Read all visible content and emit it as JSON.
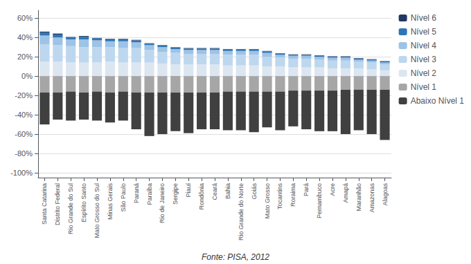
{
  "chart_data": {
    "type": "bar",
    "stacked": true,
    "categories": [
      "Santa Catarina",
      "Distrito Federal",
      "Rio Grande do Sul",
      "Espírito Santo",
      "Mato Grosso do Sul",
      "Minas Gerais",
      "São Paulo",
      "Paraná",
      "Paraíba",
      "Rio de Janeiro",
      "Sergipe",
      "Piauí",
      "Rondônia",
      "Ceará",
      "Bahia",
      "Rio Grande do Norte",
      "Goiás",
      "Mato Grosso",
      "Tocantins",
      "Roraima",
      "Pará",
      "Pernambuco",
      "Acre",
      "Amapá",
      "Maranhão",
      "Amazonas",
      "Alagoas"
    ],
    "series": [
      {
        "name": "Nível 2",
        "color": "#dce6f1",
        "values": [
          15,
          15,
          14,
          14,
          14,
          15,
          14,
          14,
          14,
          13,
          12,
          12,
          12,
          12,
          11,
          11,
          11,
          10,
          10,
          9,
          9,
          9,
          8,
          8,
          8,
          7,
          6
        ]
      },
      {
        "name": "Nível 3",
        "color": "#bdd7ee",
        "values": [
          18,
          17,
          17,
          16,
          16,
          15,
          15,
          15,
          13,
          12,
          12,
          11,
          11,
          11,
          11,
          11,
          11,
          10,
          9,
          9,
          9,
          8,
          8,
          8,
          7,
          7,
          6
        ]
      },
      {
        "name": "Nível 4",
        "color": "#9dc3e6",
        "values": [
          9,
          8,
          7,
          8,
          7,
          6,
          7,
          6,
          5,
          5,
          4,
          4,
          4,
          4,
          4,
          4,
          4,
          4,
          3,
          3,
          3,
          3,
          3,
          3,
          2,
          2,
          2
        ]
      },
      {
        "name": "Nível 5",
        "color": "#2e75b6",
        "values": [
          3,
          3,
          2,
          2.5,
          2,
          2,
          2,
          2,
          1.5,
          1.5,
          1.5,
          1.5,
          1.5,
          1.5,
          1.5,
          1.5,
          1.5,
          1.5,
          1,
          1,
          1,
          1,
          1,
          1,
          1,
          1,
          1
        ]
      },
      {
        "name": "Nível 6",
        "color": "#1f3864",
        "values": [
          1,
          1,
          0.5,
          1,
          0.5,
          0.5,
          0.5,
          0.5,
          0.5,
          0.5,
          0.5,
          0.5,
          0.5,
          0.5,
          0.5,
          0.5,
          0.5,
          0.5,
          0.5,
          0.5,
          0.5,
          0.5,
          0.5,
          0.5,
          0.5,
          0.5,
          0.5
        ]
      },
      {
        "name": "Nível 1",
        "color": "#a6a6a6",
        "values": [
          -17,
          -17,
          -16,
          -17,
          -16,
          -17,
          -16,
          -17,
          -17,
          -17,
          -17,
          -17,
          -17,
          -17,
          -16,
          -16,
          -16,
          -16,
          -16,
          -15,
          -15,
          -15,
          -15,
          -14,
          -14,
          -14,
          -14
        ]
      },
      {
        "name": "Abaixo Nível 1",
        "color": "#404040",
        "values": [
          -33,
          -28,
          -30,
          -28,
          -30,
          -31,
          -30,
          -38,
          -45,
          -43,
          -40,
          -42,
          -38,
          -38,
          -40,
          -40,
          -42,
          -37,
          -40,
          -37,
          -40,
          -42,
          -42,
          -46,
          -42,
          -46,
          -52
        ]
      }
    ],
    "ylim": [
      -105,
      68
    ],
    "yticks": [
      {
        "value": -100,
        "label": "-100%"
      },
      {
        "value": -80,
        "label": "-80%"
      },
      {
        "value": -60,
        "label": "-60%"
      },
      {
        "value": -40,
        "label": "-40%"
      },
      {
        "value": -20,
        "label": "-20%"
      },
      {
        "value": 0,
        "label": "0%"
      },
      {
        "value": 20,
        "label": "20%"
      },
      {
        "value": 40,
        "label": "40%"
      },
      {
        "value": 60,
        "label": "60%"
      }
    ],
    "grid": true,
    "legend": "upper right",
    "annotations": [
      "Fonte: PISA, 2012"
    ]
  }
}
